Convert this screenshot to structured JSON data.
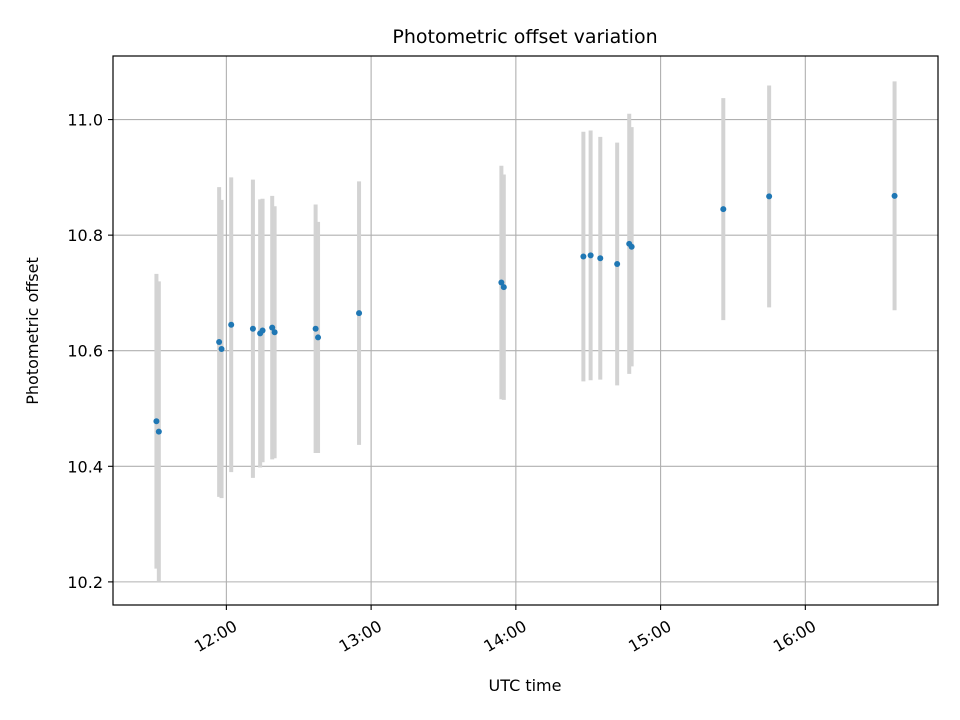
{
  "chart_data": {
    "type": "scatter",
    "title": "Photometric offset variation",
    "xlabel": "UTC time",
    "ylabel": "Photometric offset",
    "x_tick_labels": [
      "12:00",
      "13:00",
      "14:00",
      "15:00",
      "16:00"
    ],
    "y_tick_labels": [
      "10.2",
      "10.4",
      "10.6",
      "10.8",
      "11.0"
    ],
    "grid": true,
    "xlim": [
      "11:13",
      "16:55"
    ],
    "ylim": [
      10.16,
      11.11
    ],
    "colors": {
      "point": "#1f77b4",
      "errorbar": "#d3d3d3",
      "grid": "#b0b0b0"
    },
    "series": [
      {
        "points": [
          {
            "x": "11:31",
            "y": 10.478,
            "yerr": 0.255
          },
          {
            "x": "11:32",
            "y": 10.46,
            "yerr": 0.26
          },
          {
            "x": "11:57",
            "y": 10.615,
            "yerr": 0.268
          },
          {
            "x": "11:58",
            "y": 10.603,
            "yerr": 0.258
          },
          {
            "x": "12:02",
            "y": 10.645,
            "yerr": 0.255
          },
          {
            "x": "12:11",
            "y": 10.638,
            "yerr": 0.258
          },
          {
            "x": "12:14",
            "y": 10.63,
            "yerr": 0.232
          },
          {
            "x": "12:15",
            "y": 10.635,
            "yerr": 0.228
          },
          {
            "x": "12:19",
            "y": 10.64,
            "yerr": 0.228
          },
          {
            "x": "12:20",
            "y": 10.632,
            "yerr": 0.218
          },
          {
            "x": "12:37",
            "y": 10.638,
            "yerr": 0.215
          },
          {
            "x": "12:38",
            "y": 10.623,
            "yerr": 0.2
          },
          {
            "x": "12:55",
            "y": 10.665,
            "yerr": 0.228
          },
          {
            "x": "13:54",
            "y": 10.718,
            "yerr": 0.202
          },
          {
            "x": "13:55",
            "y": 10.71,
            "yerr": 0.195
          },
          {
            "x": "14:28",
            "y": 10.763,
            "yerr": 0.216
          },
          {
            "x": "14:31",
            "y": 10.765,
            "yerr": 0.216
          },
          {
            "x": "14:35",
            "y": 10.76,
            "yerr": 0.21
          },
          {
            "x": "14:42",
            "y": 10.75,
            "yerr": 0.21
          },
          {
            "x": "14:47",
            "y": 10.785,
            "yerr": 0.225
          },
          {
            "x": "14:48",
            "y": 10.78,
            "yerr": 0.207
          },
          {
            "x": "15:26",
            "y": 10.845,
            "yerr": 0.192
          },
          {
            "x": "15:45",
            "y": 10.867,
            "yerr": 0.192
          },
          {
            "x": "16:37",
            "y": 10.868,
            "yerr": 0.198
          }
        ]
      }
    ]
  }
}
